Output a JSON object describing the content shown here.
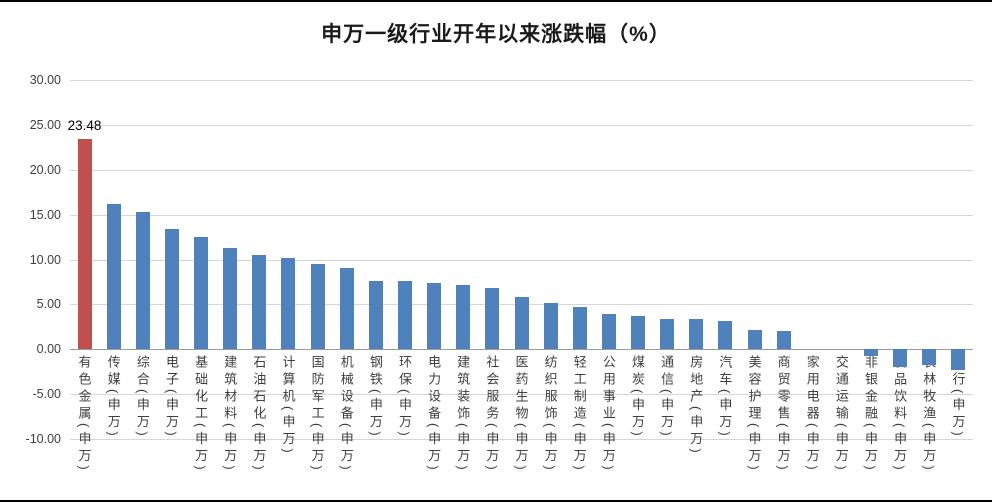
{
  "chart_data": {
    "type": "bar",
    "title": "申万一级行业开年以来涨跌幅（%）",
    "xlabel": "",
    "ylabel": "",
    "ylim": [
      -10,
      30
    ],
    "grid": true,
    "legend": "none",
    "bar_color": "#4f81bd",
    "highlight_color": "#c0504d",
    "highlight_index": 0,
    "yticks": [
      30,
      25,
      20,
      15,
      10,
      5,
      0,
      -5,
      -10
    ],
    "ytick_labels": [
      "30.00",
      "25.00",
      "20.00",
      "15.00",
      "10.00",
      "5.00",
      "0.00",
      "-5.00",
      "-10.00"
    ],
    "categories": [
      "有色金属(申万)",
      "传媒(申万)",
      "综合(申万)",
      "电子(申万)",
      "基础化工(申万)",
      "建筑材料(申万)",
      "石油石化(申万)",
      "计算机(申万)",
      "国防军工(申万)",
      "机械设备(申万)",
      "钢铁(申万)",
      "环保(申万)",
      "电力设备(申万)",
      "建筑装饰(申万)",
      "社会服务(申万)",
      "医药生物(申万)",
      "纺织服饰(申万)",
      "轻工制造(申万)",
      "公用事业(申万)",
      "煤炭(申万)",
      "通信(申万)",
      "房地产(申万)",
      "汽车(申万)",
      "美容护理(申万)",
      "商贸零售(申万)",
      "家用电器(申万)",
      "交通运输(申万)",
      "非银金融(申万)",
      "食品饮料(申万)",
      "农林牧渔(申万)",
      "银行(申万)"
    ],
    "values": [
      23.48,
      16.2,
      15.3,
      13.4,
      12.5,
      11.3,
      10.5,
      10.2,
      9.5,
      9.1,
      7.6,
      7.6,
      7.4,
      7.2,
      6.8,
      5.8,
      5.2,
      4.7,
      3.9,
      3.7,
      3.4,
      3.4,
      3.2,
      2.2,
      2.0,
      0.0,
      0.0,
      -0.7,
      -2.0,
      -1.7,
      -2.3
    ],
    "data_labels": [
      {
        "index": 0,
        "text": "23.48"
      }
    ]
  }
}
